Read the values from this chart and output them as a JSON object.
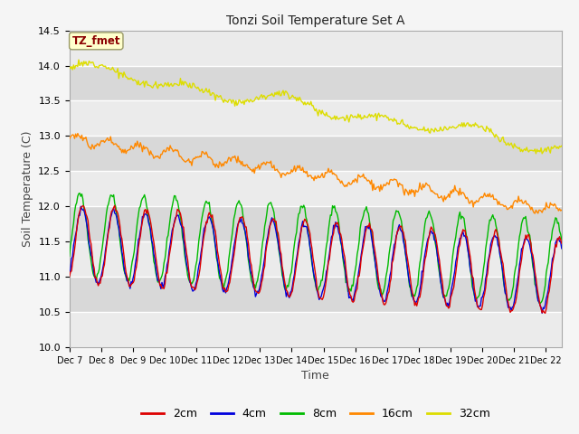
{
  "title": "Tonzi Soil Temperature Set A",
  "xlabel": "Time",
  "ylabel": "Soil Temperature (C)",
  "ylim": [
    10.0,
    14.5
  ],
  "label_text": "TZ_fmet",
  "legend_entries": [
    "2cm",
    "4cm",
    "8cm",
    "16cm",
    "32cm"
  ],
  "colors": {
    "2cm": "#dd0000",
    "4cm": "#0000dd",
    "8cm": "#00bb00",
    "16cm": "#ff8800",
    "32cm": "#dddd00"
  },
  "plot_bg_color": "#e8e8e8",
  "n_points": 480,
  "days": 15.5
}
